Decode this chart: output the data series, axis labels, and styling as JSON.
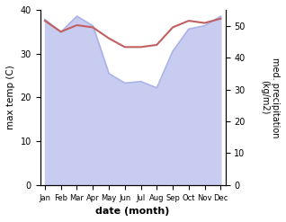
{
  "months": [
    "Jan",
    "Feb",
    "Mar",
    "Apr",
    "May",
    "Jun",
    "Jul",
    "Aug",
    "Sep",
    "Oct",
    "Nov",
    "Dec"
  ],
  "max_temp": [
    37.5,
    35.0,
    36.5,
    36.0,
    33.5,
    31.5,
    31.5,
    32.0,
    36.0,
    37.5,
    37.0,
    38.0
  ],
  "precipitation": [
    52.0,
    48.0,
    53.0,
    50.0,
    35.0,
    32.0,
    32.5,
    30.5,
    42.0,
    49.0,
    50.0,
    53.0
  ],
  "temp_color": "#c06060",
  "precip_line_color": "#aab4e8",
  "precip_fill_color": "#c8ccf0",
  "ylabel_left": "max temp (C)",
  "ylabel_right": "med. precipitation\n(kg/m2)",
  "xlabel": "date (month)",
  "ylim_left": [
    0,
    40
  ],
  "ylim_right": [
    0,
    55
  ],
  "yticks_left": [
    0,
    10,
    20,
    30,
    40
  ],
  "yticks_right": [
    0,
    10,
    20,
    30,
    40,
    50
  ],
  "fig_width": 3.18,
  "fig_height": 2.47,
  "dpi": 100
}
